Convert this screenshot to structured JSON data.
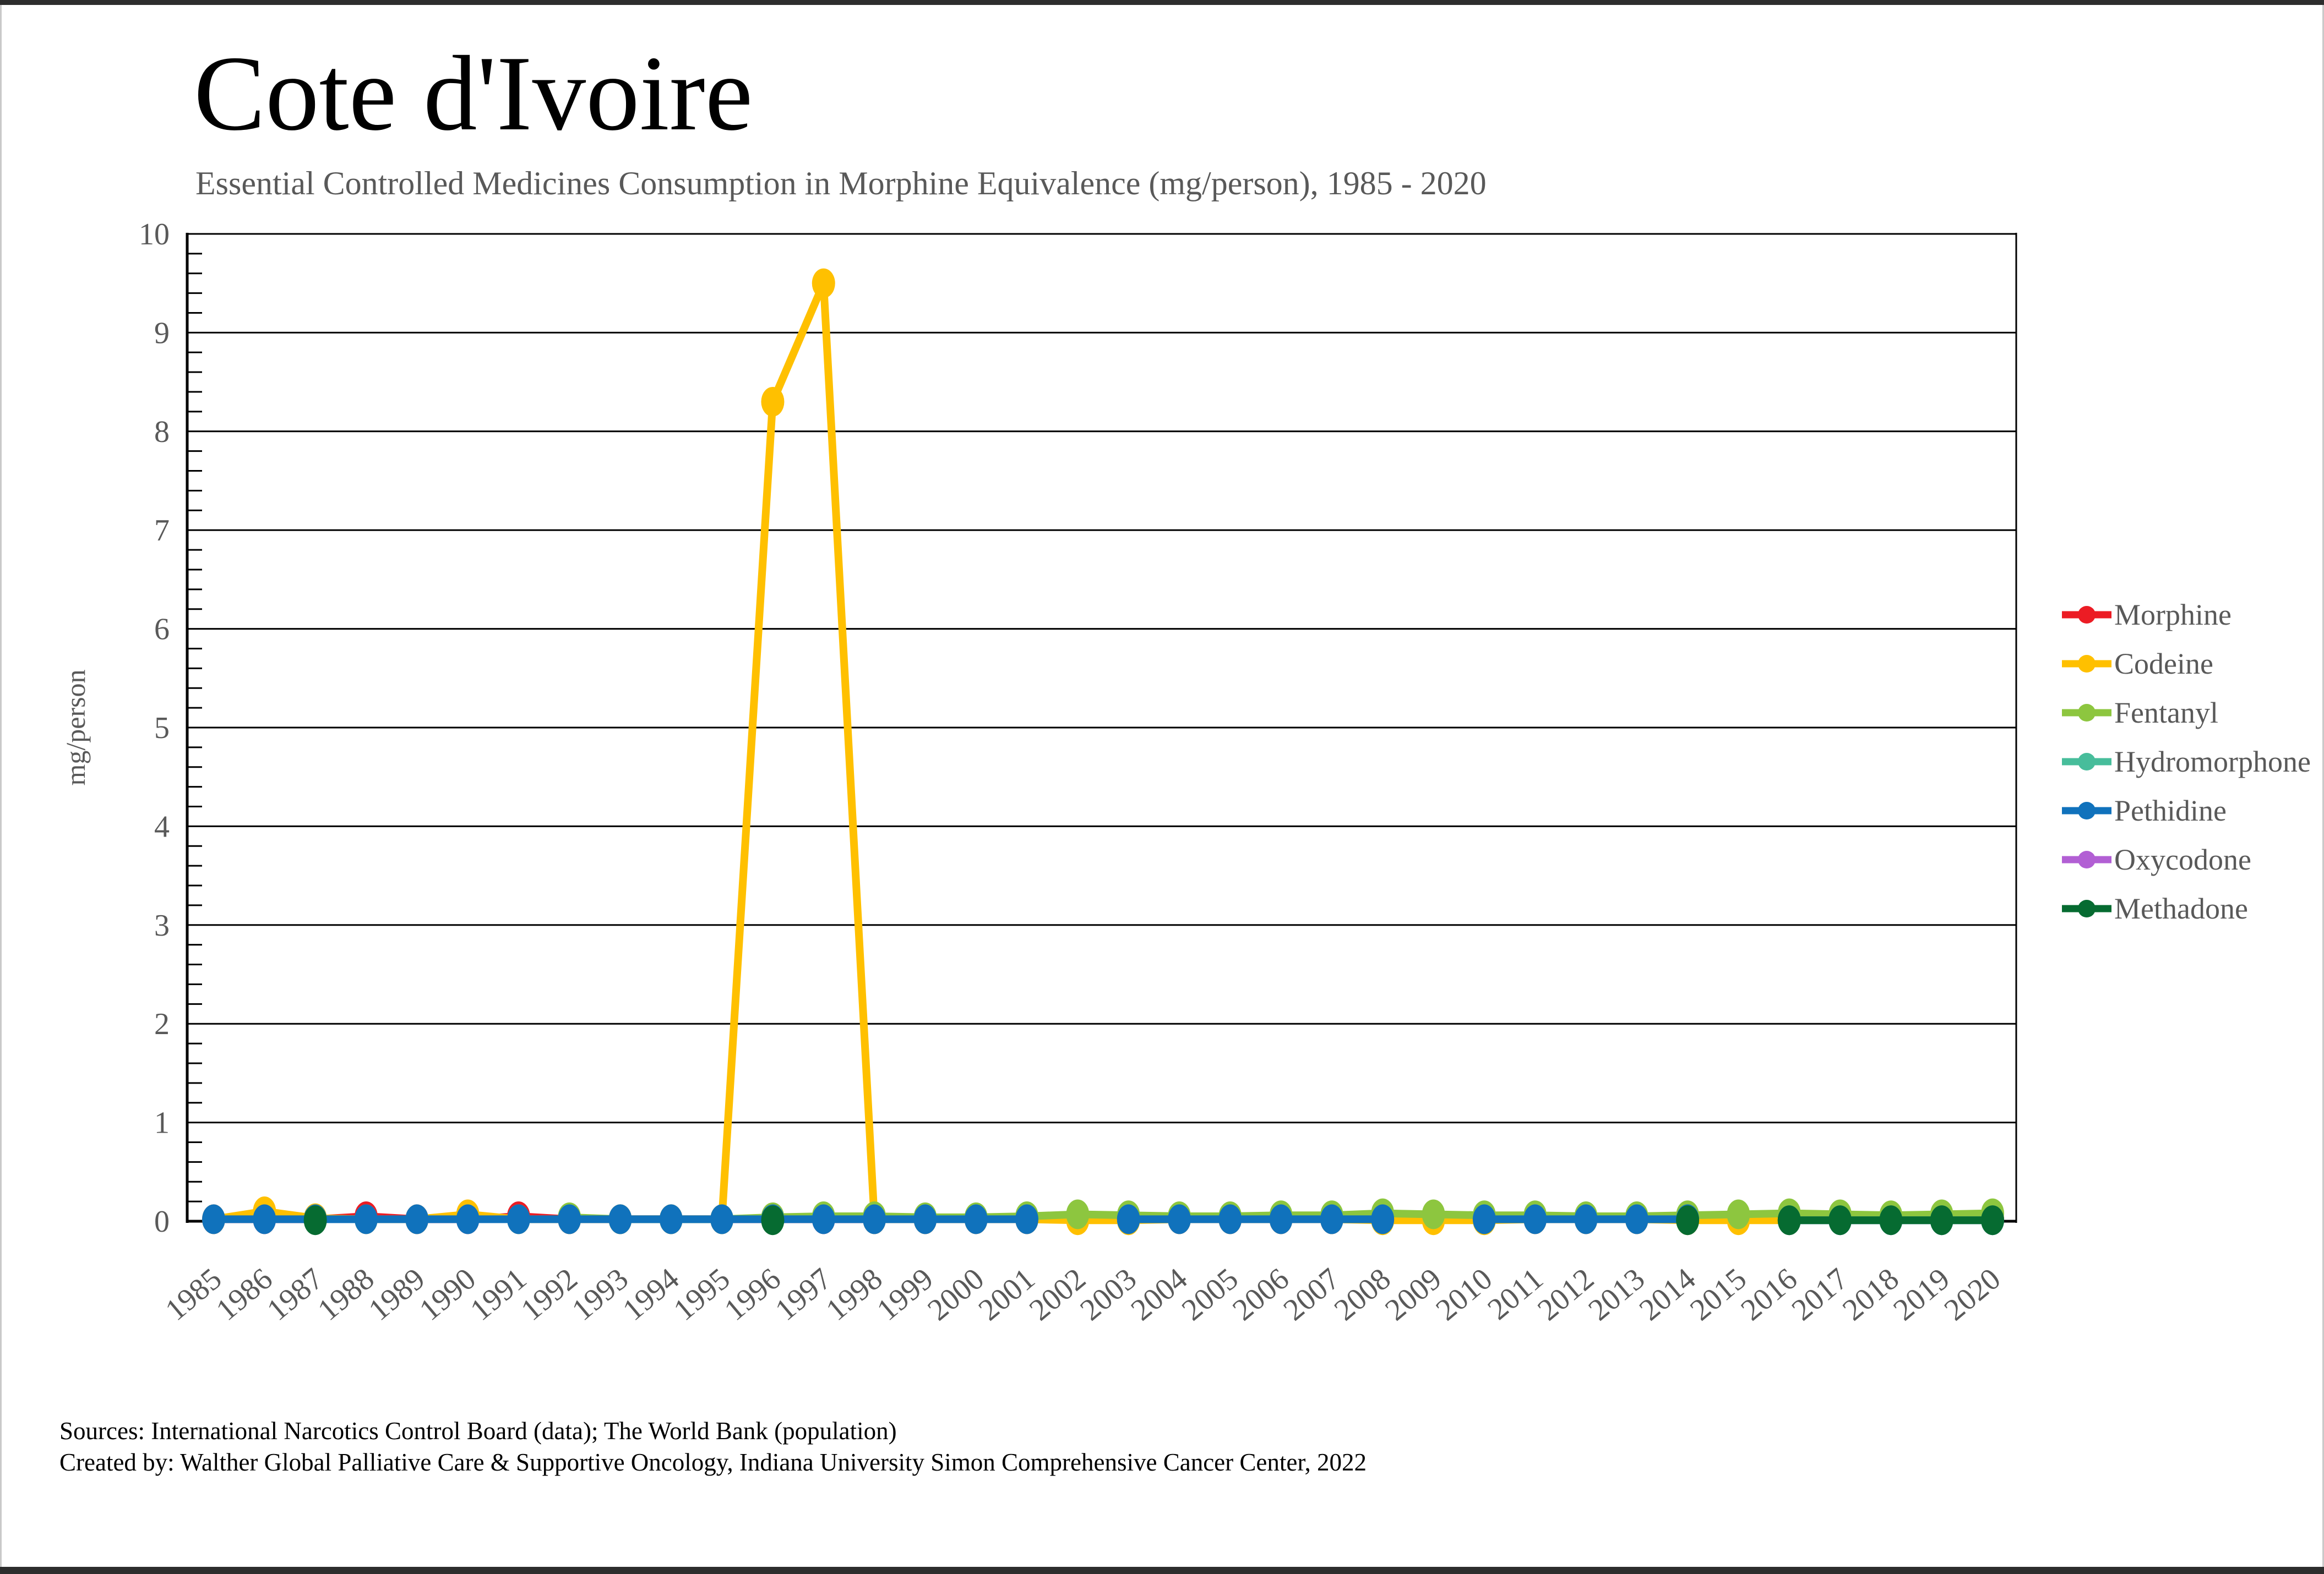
{
  "page": {
    "title": "Cote d'Ivoire",
    "subtitle": "Essential Controlled Medicines Consumption in Morphine Equivalence (mg/person), 1985 - 2020",
    "footer": {
      "line1": "Sources: International Narcotics Control Board (data); The World Bank (population)",
      "line2": "Created by: Walther Global Palliative Care & Supportive Oncology, Indiana University Simon Comprehensive Cancer Center, 2022"
    }
  },
  "chart_data": {
    "type": "line",
    "title": "Cote d'Ivoire",
    "subtitle": "Essential Controlled Medicines Consumption in Morphine Equivalence (mg/person), 1985 - 2020",
    "xlabel": "",
    "ylabel": "mg/person",
    "ylim": [
      0,
      10
    ],
    "yticks": [
      0,
      1,
      2,
      3,
      4,
      5,
      6,
      7,
      8,
      9,
      10
    ],
    "grid": "horizontal",
    "legend_position": "right",
    "x": [
      1985,
      1986,
      1987,
      1988,
      1989,
      1990,
      1991,
      1992,
      1993,
      1994,
      1995,
      1996,
      1997,
      1998,
      1999,
      2000,
      2001,
      2002,
      2003,
      2004,
      2005,
      2006,
      2007,
      2008,
      2009,
      2010,
      2011,
      2012,
      2013,
      2014,
      2015,
      2016,
      2017,
      2018,
      2019,
      2020
    ],
    "series": [
      {
        "name": "Morphine",
        "color": "#EC1C24",
        "values": [
          0.02,
          0.02,
          0.02,
          0.05,
          0.02,
          0.02,
          0.05,
          0.02,
          0.02,
          0.02,
          0.02,
          0.02,
          0.02,
          0.02,
          0.02,
          0.02,
          0.02,
          0.02,
          0.02,
          0.02,
          0.02,
          0.02,
          0.02,
          0.02,
          0.02,
          0.02,
          0.02,
          0.02,
          0.02,
          0.02,
          0.02,
          0.02,
          0.02,
          0.02,
          0.02,
          0.02
        ]
      },
      {
        "name": "Codeine",
        "color": "#FFC000",
        "values": [
          0.02,
          0.1,
          0.03,
          0.02,
          0.02,
          0.07,
          0.02,
          0.02,
          0.02,
          0.02,
          0.02,
          8.3,
          9.5,
          0.02,
          0.02,
          0.02,
          0.02,
          0.01,
          0.01,
          0.02,
          0.02,
          0.02,
          0.02,
          0.01,
          0.01,
          0.01,
          0.02,
          0.02,
          0.02,
          0.01,
          0.01,
          0.01,
          0.02,
          0.02,
          0.02,
          0.02
        ]
      },
      {
        "name": "Fentanyl",
        "color": "#8DC63F",
        "values": [
          null,
          null,
          null,
          null,
          null,
          null,
          null,
          0.04,
          0.02,
          0.02,
          0.02,
          0.04,
          0.05,
          0.05,
          0.04,
          0.04,
          0.05,
          0.07,
          0.06,
          0.05,
          0.05,
          0.06,
          0.06,
          0.08,
          0.07,
          0.06,
          0.06,
          0.05,
          0.05,
          0.06,
          0.07,
          0.08,
          0.07,
          0.06,
          0.07,
          0.08
        ]
      },
      {
        "name": "Hydromorphone",
        "color": "#47BD9B",
        "values": [
          null,
          null,
          null,
          null,
          null,
          null,
          null,
          null,
          null,
          null,
          null,
          null,
          null,
          null,
          null,
          null,
          null,
          null,
          null,
          null,
          null,
          null,
          null,
          null,
          null,
          null,
          null,
          null,
          null,
          null,
          null,
          null,
          null,
          null,
          null,
          null
        ]
      },
      {
        "name": "Pethidine",
        "color": "#1072BC",
        "values": [
          0.02,
          0.02,
          0.02,
          0.02,
          0.02,
          0.02,
          0.02,
          0.02,
          0.02,
          0.02,
          0.02,
          0.02,
          0.02,
          0.02,
          0.02,
          0.02,
          0.02,
          null,
          0.02,
          0.02,
          0.02,
          0.02,
          0.02,
          0.02,
          null,
          0.02,
          0.02,
          0.02,
          0.02,
          0.02,
          null,
          0.01,
          0.01,
          0.01,
          0.01,
          0.01
        ]
      },
      {
        "name": "Oxycodone",
        "color": "#B25FD4",
        "values": [
          null,
          null,
          null,
          null,
          null,
          null,
          null,
          null,
          null,
          null,
          null,
          null,
          null,
          null,
          null,
          null,
          null,
          null,
          null,
          null,
          null,
          null,
          null,
          null,
          null,
          null,
          null,
          null,
          null,
          null,
          null,
          null,
          null,
          null,
          null,
          null
        ]
      },
      {
        "name": "Methadone",
        "color": "#066B31",
        "values": [
          null,
          null,
          0.01,
          null,
          null,
          null,
          null,
          null,
          null,
          null,
          null,
          0.01,
          null,
          null,
          null,
          null,
          null,
          null,
          null,
          null,
          null,
          null,
          null,
          null,
          null,
          null,
          null,
          null,
          null,
          0.01,
          null,
          0.01,
          0.01,
          0.01,
          0.01,
          0.01
        ]
      }
    ]
  }
}
